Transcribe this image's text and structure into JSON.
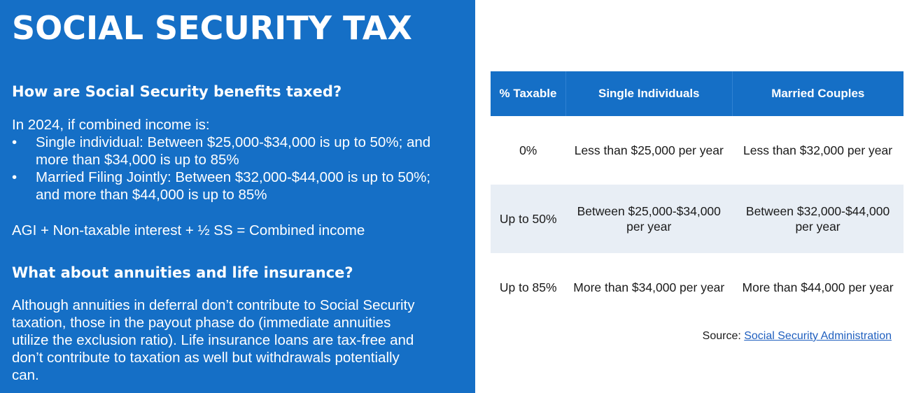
{
  "left": {
    "title": "SOCIAL SECURITY TAX",
    "heading1": "How are Social Security benefits taxed?",
    "intro": "In 2024, if combined income is:",
    "bullets": [
      "Single individual: Between $25,000-$34,000 is up to 50%; and more than $34,000 is up to 85%",
      "Married Filing Jointly: Between $32,000-$44,000 is up to 50%; and more than $44,000 is up to 85%"
    ],
    "bullet_symbol": "•",
    "formula": "AGI + Non-taxable interest + ½ SS = Combined income",
    "heading2": "What about annuities and life insurance?",
    "paragraph": "Although annuities in deferral don’t contribute to Social Security taxation, those in the payout phase do (immediate annuities utilize the exclusion ratio). Life insurance loans are tax-free and don’t contribute to taxation as well but withdrawals potentially can."
  },
  "table": {
    "headers": [
      "% Taxable",
      "Single Individuals",
      "Married Couples"
    ],
    "rows": [
      [
        "0%",
        "Less than $25,000 per year",
        "Less than $32,000 per year"
      ],
      [
        "Up to 50%",
        "Between $25,000-$34,000 per year",
        "Between $32,000-$44,000 per year"
      ],
      [
        "Up to 85%",
        "More than $34,000 per year",
        "More than $44,000 per year"
      ]
    ]
  },
  "source": {
    "label": "Source:",
    "link_text": "Social Security Administration"
  },
  "colors": {
    "brand_blue": "#156fc6",
    "row_shade": "#e8eef5",
    "link": "#1f5fbf"
  }
}
